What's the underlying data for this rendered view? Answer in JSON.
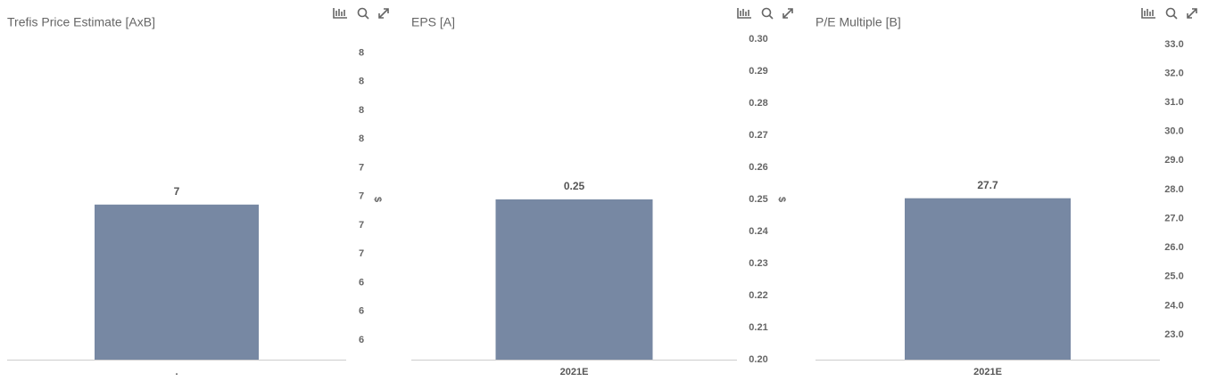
{
  "chart_data": [
    {
      "type": "bar",
      "title": "Trefis Price Estimate [AxB]",
      "y_label": "$",
      "categories": [
        "."
      ],
      "values": [
        6.93
      ],
      "value_labels": [
        "7"
      ],
      "color": "#7788a3",
      "ylim": [
        5.58,
        8.37
      ],
      "yticks": [
        {
          "value": 5.75,
          "label": "6"
        },
        {
          "value": 6.0,
          "label": "6"
        },
        {
          "value": 6.25,
          "label": "6"
        },
        {
          "value": 6.5,
          "label": "7"
        },
        {
          "value": 6.75,
          "label": "7"
        },
        {
          "value": 7.0,
          "label": "7"
        },
        {
          "value": 7.25,
          "label": "7"
        },
        {
          "value": 7.5,
          "label": "8"
        },
        {
          "value": 7.75,
          "label": "8"
        },
        {
          "value": 8.0,
          "label": "8"
        },
        {
          "value": 8.25,
          "label": "8"
        }
      ]
    },
    {
      "type": "bar",
      "title": "EPS [A]",
      "y_label": "$",
      "categories": [
        "2021E"
      ],
      "values": [
        0.25
      ],
      "color": "#7788a3",
      "ylim": [
        0.2,
        0.3
      ],
      "yticks": [
        {
          "value": 0.2,
          "label": "0.20"
        },
        0.21,
        0.22,
        0.23,
        0.24,
        0.25,
        0.26,
        0.27,
        0.28,
        0.29,
        {
          "value": 0.3,
          "label": "0.30"
        }
      ]
    },
    {
      "type": "bar",
      "title": "P/E Multiple [B]",
      "categories": [
        "2021E"
      ],
      "values": [
        27.7
      ],
      "color": "#7788a3",
      "ylim": [
        22.14,
        33.18
      ],
      "yticks": [
        {
          "value": 23,
          "label": "23.0"
        },
        {
          "value": 24,
          "label": "24.0"
        },
        {
          "value": 25,
          "label": "25.0"
        },
        {
          "value": 26,
          "label": "26.0"
        },
        {
          "value": 27,
          "label": "27.0"
        },
        {
          "value": 28,
          "label": "28.0"
        },
        {
          "value": 29,
          "label": "29.0"
        },
        {
          "value": 30,
          "label": "30.0"
        },
        {
          "value": 31,
          "label": "31.0"
        },
        {
          "value": 32,
          "label": "32.0"
        },
        {
          "value": 33,
          "label": "33.0"
        }
      ]
    }
  ]
}
